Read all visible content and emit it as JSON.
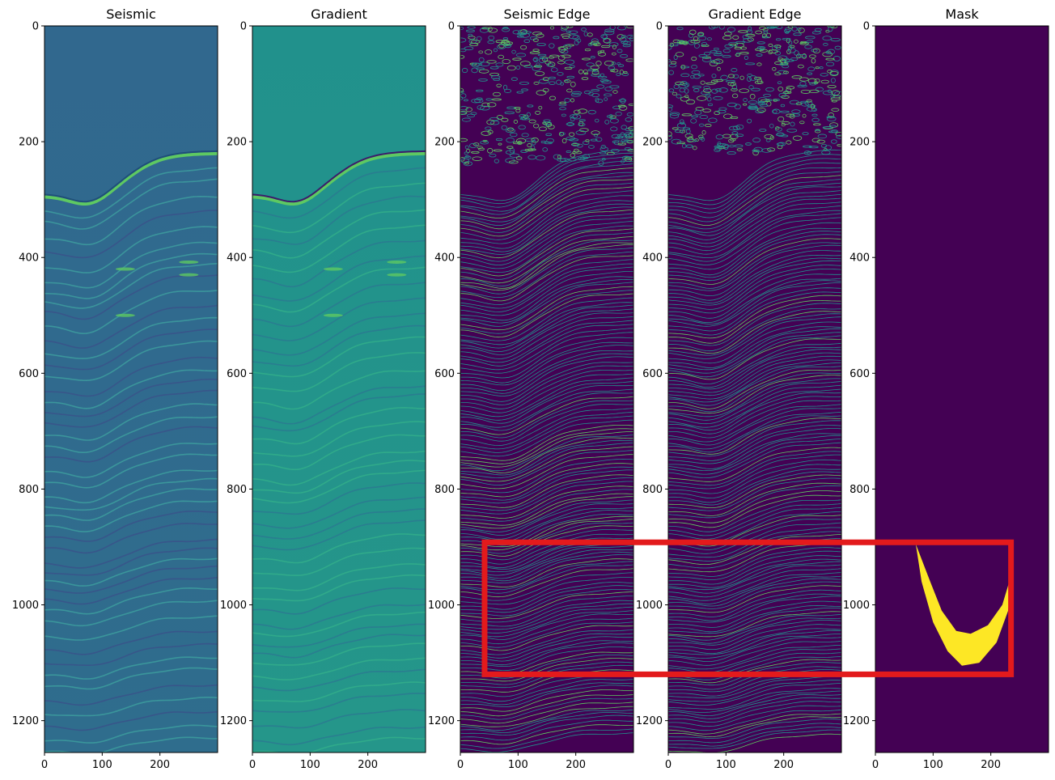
{
  "colors": {
    "viridis_dark": "#440154",
    "viridis_teal": "#21918c",
    "viridis_blue": "#31688e",
    "viridis_green": "#5ec962",
    "viridis_yellow": "#fde725",
    "highlight_box": "#e31a1c"
  },
  "chart_data": [
    {
      "type": "heatmap",
      "title": "Seismic",
      "xlim": [
        0,
        300
      ],
      "ylim": [
        1255,
        0
      ],
      "xticks": [
        0,
        100,
        200
      ],
      "yticks": [
        0,
        200,
        400,
        600,
        800,
        1000,
        1200
      ],
      "colormap": "viridis",
      "grid": false,
      "description_values": {
        "top_reflector_depth_left": 295,
        "top_reflector_depth_right": 220
      }
    },
    {
      "type": "heatmap",
      "title": "Gradient",
      "xlim": [
        0,
        300
      ],
      "ylim": [
        1255,
        0
      ],
      "xticks": [
        0,
        100,
        200
      ],
      "yticks": [
        0,
        200,
        400,
        600,
        800,
        1000,
        1200
      ],
      "colormap": "viridis",
      "grid": false
    },
    {
      "type": "heatmap",
      "title": "Seismic Edge",
      "xlim": [
        0,
        300
      ],
      "ylim": [
        1255,
        0
      ],
      "xticks": [
        0,
        100,
        200
      ],
      "yticks": [
        0,
        200,
        400,
        600,
        800,
        1000,
        1200
      ],
      "colormap": "viridis",
      "grid": false
    },
    {
      "type": "heatmap",
      "title": "Gradient Edge",
      "xlim": [
        0,
        300
      ],
      "ylim": [
        1255,
        0
      ],
      "xticks": [
        0,
        100,
        200
      ],
      "yticks": [
        0,
        200,
        400,
        600,
        800,
        1000,
        1200
      ],
      "colormap": "viridis",
      "grid": false
    },
    {
      "type": "heatmap",
      "title": "Mask",
      "xlim": [
        0,
        300
      ],
      "ylim": [
        1255,
        0
      ],
      "xticks": [
        0,
        100,
        200
      ],
      "yticks": [
        0,
        200,
        400,
        600,
        800,
        1000,
        1200
      ],
      "colormap": "viridis",
      "grid": false,
      "mask_region": {
        "outer_edge": [
          [
            70,
            895
          ],
          [
            80,
            960
          ],
          [
            100,
            1030
          ],
          [
            125,
            1080
          ],
          [
            150,
            1105
          ],
          [
            180,
            1100
          ],
          [
            210,
            1065
          ],
          [
            230,
            1010
          ],
          [
            235,
            950
          ]
        ],
        "inner_edge": [
          [
            235,
            950
          ],
          [
            220,
            1000
          ],
          [
            195,
            1035
          ],
          [
            165,
            1050
          ],
          [
            140,
            1045
          ],
          [
            115,
            1010
          ],
          [
            95,
            960
          ],
          [
            70,
            895
          ]
        ]
      }
    }
  ],
  "highlight": {
    "x_start": 42,
    "x_end": 235,
    "y_start": 892,
    "y_end": 1120,
    "x_start_panel": 2,
    "x_end_panel": 4
  }
}
